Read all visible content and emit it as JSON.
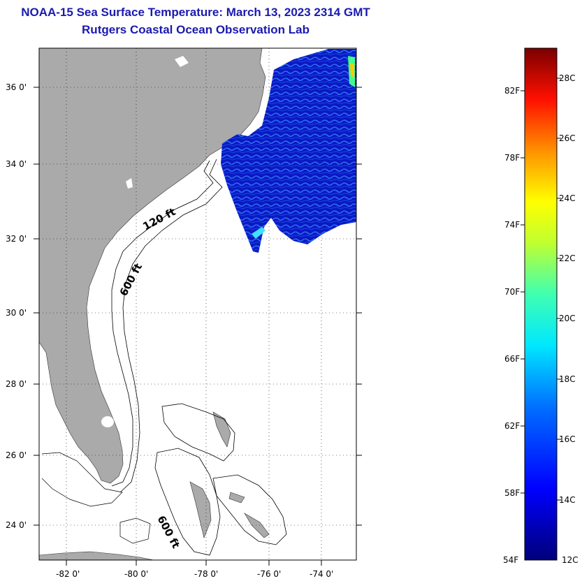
{
  "title": "NOAA-15 Sea Surface Temperature:  March 13, 2023 2314 GMT",
  "subtitle": "Rutgers Coastal Ocean Observation Lab",
  "map": {
    "lat_ticks": [
      "36 0'",
      "34 0'",
      "32 0'",
      "30 0'",
      "28 0'",
      "26 0'",
      "24 0'"
    ],
    "lon_ticks": [
      "-82 0'",
      "-80 0'",
      "-78 0'",
      "-76 0'",
      "-74 0'"
    ],
    "depth_labels": [
      "120 ft",
      "600 ft",
      "600 ft"
    ],
    "land_color": "#aaaaaa",
    "ocean_color": "#ffffff",
    "sst_dominant_color": "#0a1cc8"
  },
  "colorbar": {
    "fahrenheit_labels": [
      "82F",
      "78F",
      "74F",
      "70F",
      "66F",
      "62F",
      "58F",
      "54F"
    ],
    "celsius_labels": [
      "28C",
      "26C",
      "24C",
      "22C",
      "20C",
      "18C",
      "16C",
      "14C",
      "12C"
    ],
    "colors": [
      "#000080",
      "#0000ff",
      "#0080ff",
      "#00ffff",
      "#80ff80",
      "#ffff00",
      "#ff8000",
      "#ff0000",
      "#800000"
    ]
  }
}
